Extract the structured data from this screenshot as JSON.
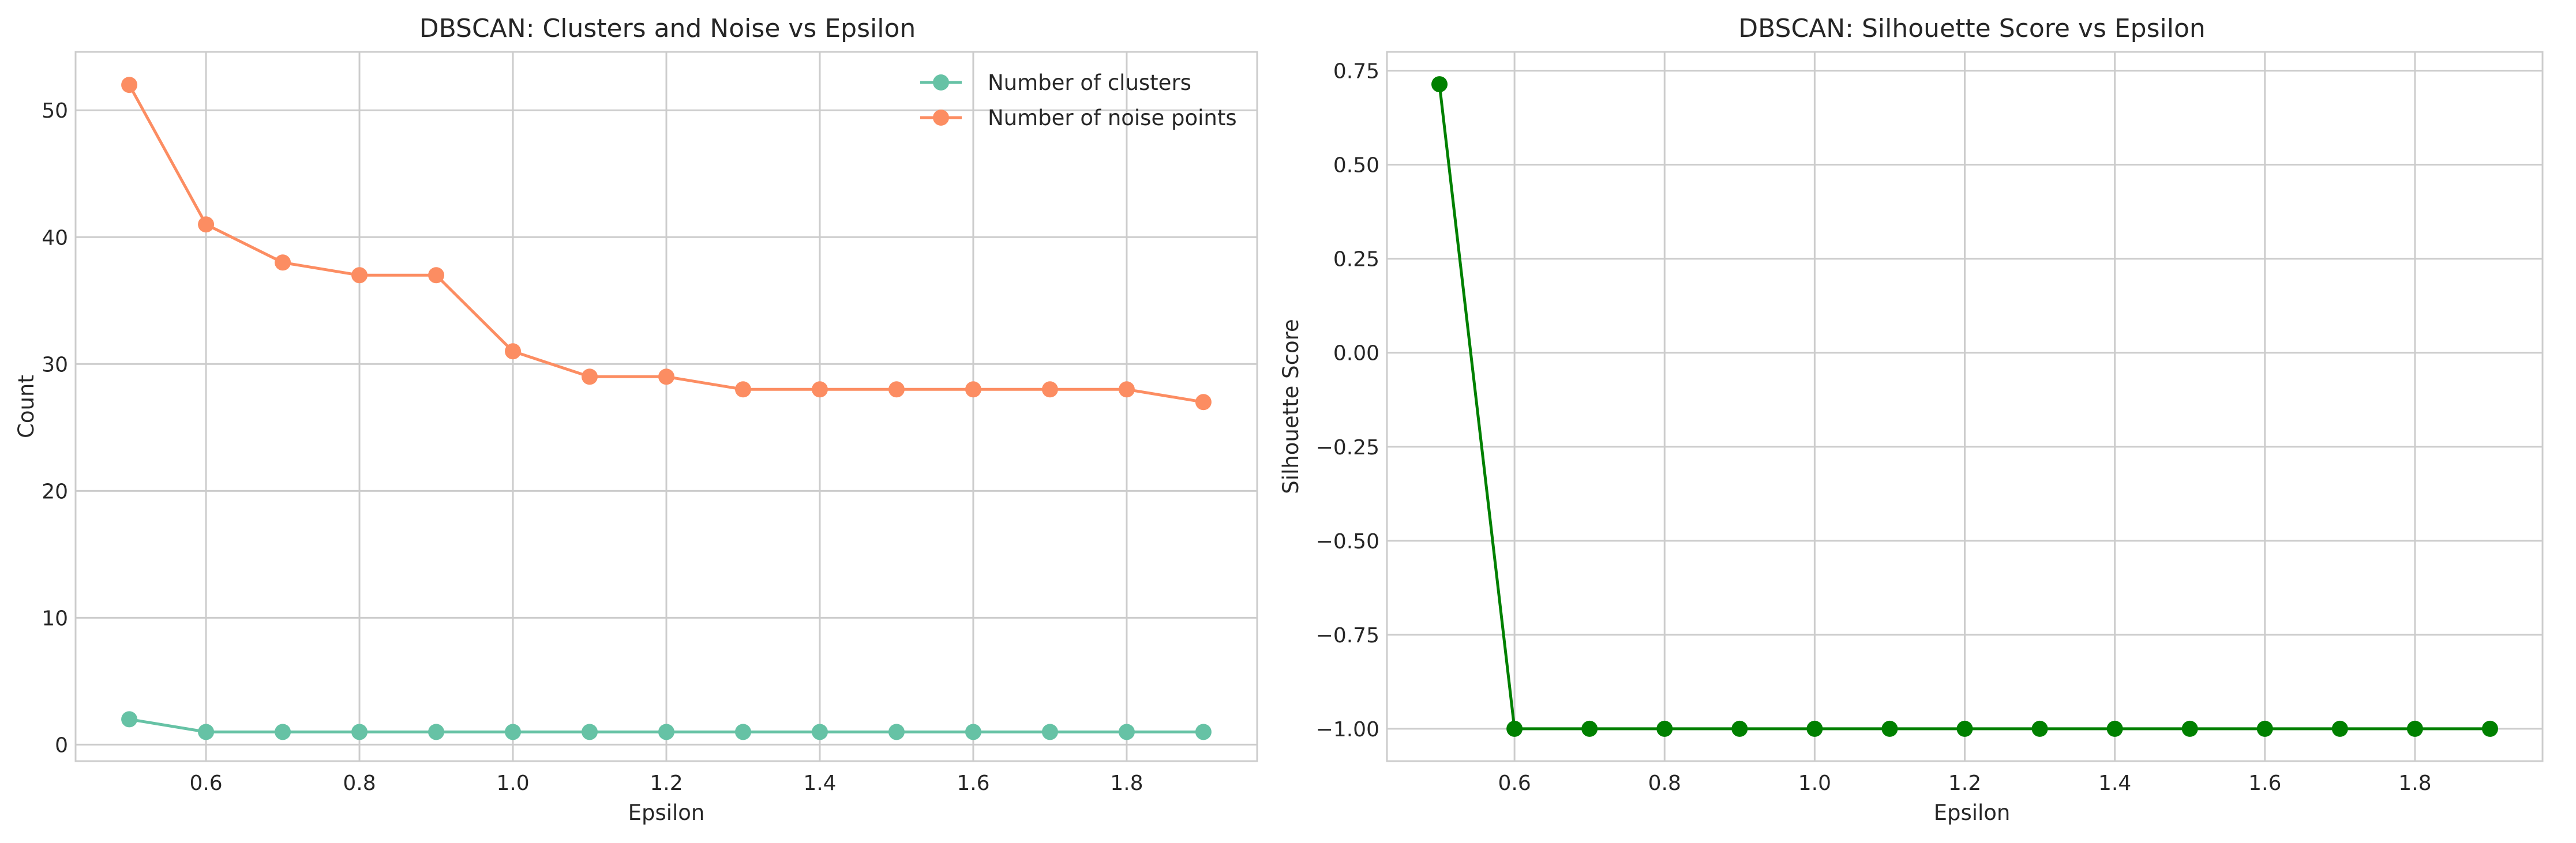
{
  "chart_data": [
    {
      "type": "line",
      "title": "DBSCAN: Clusters and Noise vs Epsilon",
      "xlabel": "Epsilon",
      "ylabel": "Count",
      "x": [
        0.5,
        0.6,
        0.7,
        0.8,
        0.9,
        1.0,
        1.1,
        1.2,
        1.3,
        1.4,
        1.5,
        1.6,
        1.7,
        1.8,
        1.9
      ],
      "xlim": [
        0.43,
        1.97
      ],
      "ylim": [
        -1.3,
        54.6
      ],
      "xticks": [
        0.6,
        0.8,
        1.0,
        1.2,
        1.4,
        1.6,
        1.8
      ],
      "xtick_labels": [
        "0.6",
        "0.8",
        "1.0",
        "1.2",
        "1.4",
        "1.6",
        "1.8"
      ],
      "yticks": [
        0,
        10,
        20,
        30,
        40,
        50
      ],
      "ytick_labels": [
        "0",
        "10",
        "20",
        "30",
        "40",
        "50"
      ],
      "grid": true,
      "legend_position": "top-right",
      "series": [
        {
          "name": "Number of clusters",
          "color": "#66c2a5",
          "values": [
            2,
            1,
            1,
            1,
            1,
            1,
            1,
            1,
            1,
            1,
            1,
            1,
            1,
            1,
            1
          ]
        },
        {
          "name": "Number of noise points",
          "color": "#fc8d62",
          "values": [
            52,
            41,
            38,
            37,
            37,
            31,
            29,
            29,
            28,
            28,
            28,
            28,
            28,
            28,
            27
          ]
        }
      ]
    },
    {
      "type": "line",
      "title": "DBSCAN: Silhouette Score vs Epsilon",
      "xlabel": "Epsilon",
      "ylabel": "Silhouette Score",
      "x": [
        0.5,
        0.6,
        0.7,
        0.8,
        0.9,
        1.0,
        1.1,
        1.2,
        1.3,
        1.4,
        1.5,
        1.6,
        1.7,
        1.8,
        1.9
      ],
      "xlim": [
        0.43,
        1.97
      ],
      "ylim": [
        -1.086,
        0.8
      ],
      "xticks": [
        0.6,
        0.8,
        1.0,
        1.2,
        1.4,
        1.6,
        1.8
      ],
      "xtick_labels": [
        "0.6",
        "0.8",
        "1.0",
        "1.2",
        "1.4",
        "1.6",
        "1.8"
      ],
      "yticks": [
        0.75,
        0.5,
        0.25,
        0.0,
        -0.25,
        -0.5,
        -0.75,
        -1.0
      ],
      "ytick_labels": [
        "0.75",
        "0.50",
        "0.25",
        "0.00",
        "−0.25",
        "−0.50",
        "−0.75",
        "−1.00"
      ],
      "grid": true,
      "series": [
        {
          "color": "#008000",
          "values": [
            0.714,
            -1,
            -1,
            -1,
            -1,
            -1,
            -1,
            -1,
            -1,
            -1,
            -1,
            -1,
            -1,
            -1,
            -1
          ]
        }
      ]
    }
  ]
}
